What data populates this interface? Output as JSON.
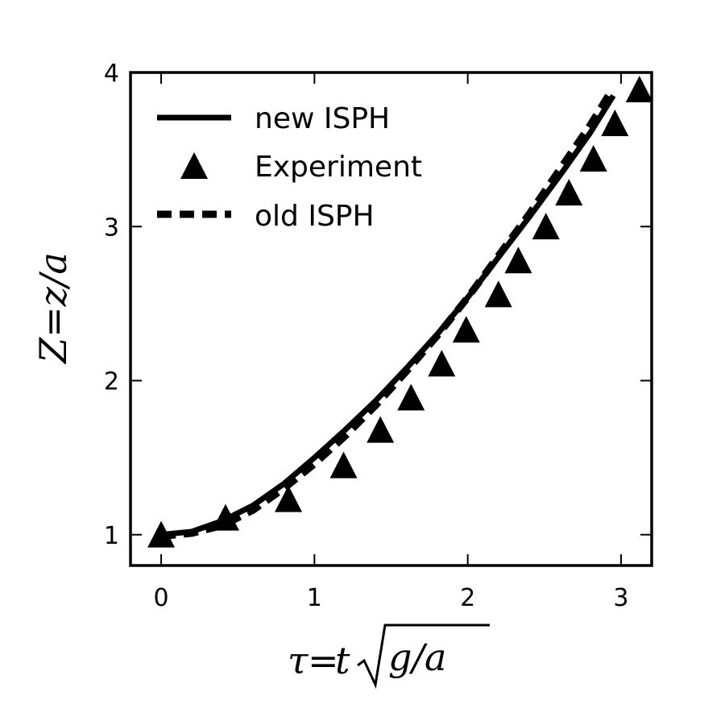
{
  "chart_data": {
    "type": "line",
    "xlabel": {
      "lhs": "τ",
      "eq": "=",
      "t": "t",
      "radicand": "g/a"
    },
    "ylabel": {
      "lhs": "Z",
      "eq": "=",
      "rhs": "z/a"
    },
    "xlim": [
      -0.2,
      3.2
    ],
    "ylim": [
      0.8,
      4.0
    ],
    "xticks": [
      0,
      1,
      2,
      3
    ],
    "yticks": [
      1,
      2,
      3,
      4
    ],
    "xtick_labels": [
      "0",
      "1",
      "2",
      "3"
    ],
    "ytick_labels": [
      "1",
      "2",
      "3",
      "4"
    ],
    "grid": false,
    "legend_position": "upper-left",
    "series": [
      {
        "name": "new ISPH",
        "style": "solid",
        "color": "#000000",
        "x": [
          0.0,
          0.2,
          0.4,
          0.6,
          0.8,
          1.0,
          1.2,
          1.4,
          1.6,
          1.8,
          2.0,
          2.2,
          2.4,
          2.6,
          2.8,
          2.95
        ],
        "y": [
          1.0,
          1.02,
          1.09,
          1.19,
          1.33,
          1.5,
          1.68,
          1.87,
          2.08,
          2.3,
          2.54,
          2.8,
          3.06,
          3.33,
          3.61,
          3.85
        ]
      },
      {
        "name": "Experiment",
        "style": "triangle",
        "color": "#000000",
        "x": [
          0.0,
          0.42,
          0.83,
          1.19,
          1.43,
          1.63,
          1.83,
          1.99,
          2.2,
          2.33,
          2.51,
          2.66,
          2.82,
          2.96,
          3.12
        ],
        "y": [
          0.99,
          1.1,
          1.22,
          1.44,
          1.67,
          1.88,
          2.1,
          2.32,
          2.55,
          2.77,
          2.99,
          3.21,
          3.43,
          3.66,
          3.88
        ]
      },
      {
        "name": "old ISPH",
        "style": "dashed",
        "color": "#000000",
        "x": [
          0.0,
          0.2,
          0.4,
          0.6,
          0.8,
          1.0,
          1.2,
          1.4,
          1.6,
          1.8,
          2.0,
          2.2,
          2.4,
          2.6,
          2.8,
          2.93
        ],
        "y": [
          0.99,
          1.01,
          1.06,
          1.16,
          1.3,
          1.46,
          1.64,
          1.84,
          2.06,
          2.29,
          2.54,
          2.81,
          3.08,
          3.37,
          3.66,
          3.87
        ]
      }
    ]
  }
}
